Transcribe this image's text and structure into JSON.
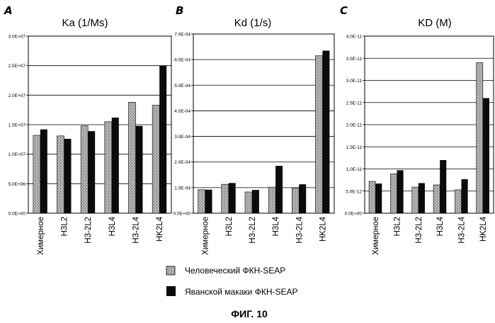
{
  "legend": {
    "human": "Человеческий ФКН-SEAP",
    "cyno": "Яванской макаки ФКН-SEAP"
  },
  "caption": "ФИГ. 10",
  "colors": {
    "human_bar": "#b8b8b8",
    "cyno_bar": "#0b0b0b",
    "grid": "#000000"
  },
  "chart_data": [
    {
      "type": "bar",
      "panel": "A",
      "title": "Ka (1/Ms)",
      "categories": [
        "Химерное",
        "H3L2",
        "H3-2L2",
        "H3L4",
        "H3-2L4",
        "HK2L4"
      ],
      "series": [
        {
          "name": "Человеческий ФКН-SEAP",
          "values": [
            13200000.0,
            13100000.0,
            14800000.0,
            15500000.0,
            18800000.0,
            18300000.0
          ]
        },
        {
          "name": "Яванской макаки ФКН-SEAP",
          "values": [
            14200000.0,
            12600000.0,
            13900000.0,
            16200000.0,
            14800000.0,
            25000000.0
          ]
        }
      ],
      "ylim": [
        0,
        30000000.0
      ],
      "yticks": [
        0,
        5000000.0,
        10000000.0,
        15000000.0,
        20000000.0,
        25000000.0,
        30000000.0
      ],
      "yticklabels": [
        "0.0E+00",
        "5.0E+06",
        "1.0E+07",
        "1.5E+07",
        "2.0E+07",
        "2.5E+07",
        "3.0E+07"
      ],
      "grid": true
    },
    {
      "type": "bar",
      "panel": "B",
      "title": "Kd (1/s)",
      "categories": [
        "Химерное",
        "H3L2",
        "H3-2L2",
        "H3L4",
        "H3-2L4",
        "HK2L4"
      ],
      "series": [
        {
          "name": "Человеческий ФКН-SEAP",
          "values": [
            9.2e-05,
            0.000113,
            8.3e-05,
            0.000102,
            9.7e-05,
            0.000615
          ]
        },
        {
          "name": "Яванской макаки ФКН-SEAP",
          "values": [
            9.2e-05,
            0.000118,
            9.1e-05,
            0.000185,
            0.000113,
            0.000635
          ]
        }
      ],
      "ylim": [
        0,
        0.0007
      ],
      "yticks": [
        0,
        0.0001,
        0.0002,
        0.0003,
        0.0004,
        0.0005,
        0.0006,
        0.0007
      ],
      "yticklabels": [
        "0.0E+00",
        "1.0E-04",
        "2.0E-04",
        "3.0E-04",
        "4.0E-04",
        "5.0E-04",
        "6.0E-04",
        "7.0E-04"
      ],
      "grid": true
    },
    {
      "type": "bar",
      "panel": "C",
      "title": "KD (M)",
      "categories": [
        "Химерное",
        "H3L2",
        "H3-2L2",
        "H3L4",
        "H3-2L4",
        "HK2L4"
      ],
      "series": [
        {
          "name": "Человеческий ФКН-SEAP",
          "values": [
            7.2e-12,
            8.9e-12,
            5.9e-12,
            6.4e-12,
            5.3e-12,
            3.4e-11
          ]
        },
        {
          "name": "Яванской макаки ФКН-SEAP",
          "values": [
            6.7e-12,
            9.7e-12,
            6.8e-12,
            1.2e-11,
            7.7e-12,
            2.6e-11
          ]
        }
      ],
      "ylim": [
        0,
        4e-11
      ],
      "yticks": [
        0,
        5e-12,
        1e-11,
        1.5e-11,
        2e-11,
        2.5e-11,
        3e-11,
        3.5e-11,
        4e-11
      ],
      "yticklabels": [
        "0.0E+00",
        "5.0E-12",
        "1.0E-11",
        "1.5E-11",
        "2.0E-11",
        "2.5E-11",
        "3.0E-11",
        "3.5E-11",
        "4.0E-11"
      ],
      "grid": true
    }
  ]
}
